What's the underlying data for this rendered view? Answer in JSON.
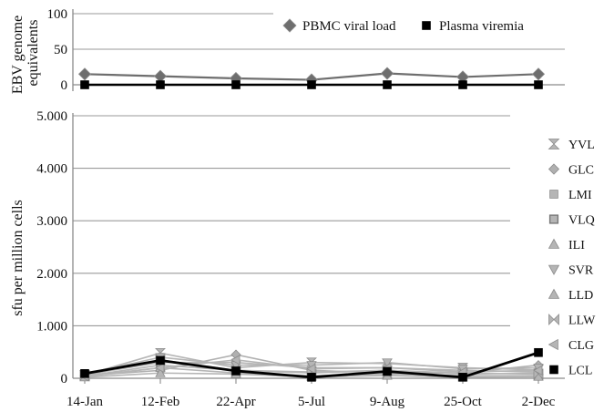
{
  "chart_data": [
    {
      "type": "line",
      "ylabel": "EBV genome equivalents",
      "ylim": [
        0,
        100
      ],
      "yticks": [
        "0",
        "50",
        "100"
      ],
      "categories": [
        "14-Jan",
        "12-Feb",
        "22-Apr",
        "5-Jul",
        "9-Aug",
        "25-Oct",
        "2-Dec"
      ],
      "legend_position": "top-right",
      "grid": true,
      "series": [
        {
          "name": "PBMC viral load",
          "marker": "diamond",
          "color": "#6e6e6e",
          "values": [
            15,
            12,
            9,
            7,
            16,
            11,
            15
          ]
        },
        {
          "name": "Plasma viremia",
          "marker": "square",
          "color": "#000000",
          "values": [
            0,
            0,
            0,
            0,
            0,
            0,
            0
          ]
        }
      ]
    },
    {
      "type": "line",
      "ylabel": "sfu per million cells",
      "ylim": [
        0,
        5000
      ],
      "yticks": [
        "0",
        "1.000",
        "2.000",
        "3.000",
        "4.000",
        "5.000"
      ],
      "categories": [
        "14-Jan",
        "12-Feb",
        "22-Apr",
        "5-Jul",
        "9-Aug",
        "25-Oct",
        "2-Dec"
      ],
      "legend_position": "right",
      "grid": true,
      "series": [
        {
          "name": "YVL",
          "marker": "hourglass",
          "color": "#b5b5b5",
          "values": [
            60,
            480,
            200,
            300,
            280,
            200,
            160
          ]
        },
        {
          "name": "GLC",
          "marker": "diamond",
          "color": "#b0b0b0",
          "values": [
            50,
            150,
            450,
            150,
            100,
            100,
            250
          ]
        },
        {
          "name": "LMI",
          "marker": "square",
          "color": "#b5b5b5",
          "values": [
            70,
            300,
            300,
            200,
            200,
            150,
            120
          ]
        },
        {
          "name": "VLQ",
          "marker": "square-open",
          "color": "#b5b5b5",
          "values": [
            40,
            250,
            150,
            100,
            150,
            80,
            100
          ]
        },
        {
          "name": "ILI",
          "marker": "triangle",
          "color": "#b5b5b5",
          "values": [
            30,
            200,
            100,
            50,
            80,
            50,
            50
          ]
        },
        {
          "name": "SVR",
          "marker": "triangle-down",
          "color": "#b5b5b5",
          "values": [
            80,
            400,
            250,
            250,
            300,
            180,
            200
          ]
        },
        {
          "name": "LLD",
          "marker": "triangle",
          "color": "#b5b5b5",
          "values": [
            20,
            100,
            80,
            30,
            50,
            20,
            30
          ]
        },
        {
          "name": "LLW",
          "marker": "bowtie",
          "color": "#b5b5b5",
          "values": [
            50,
            350,
            150,
            120,
            150,
            100,
            80
          ]
        },
        {
          "name": "CLG",
          "marker": "triangle-left",
          "color": "#b5b5b5",
          "values": [
            40,
            200,
            350,
            180,
            200,
            120,
            150
          ]
        },
        {
          "name": "LCL",
          "marker": "square",
          "color": "#000000",
          "values": [
            90,
            340,
            140,
            20,
            130,
            20,
            490
          ]
        }
      ]
    }
  ]
}
